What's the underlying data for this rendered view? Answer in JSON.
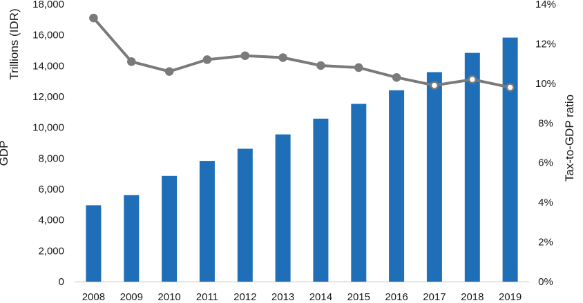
{
  "chart_data": {
    "type": "bar+line",
    "categories": [
      "2008",
      "2009",
      "2010",
      "2011",
      "2012",
      "2013",
      "2014",
      "2015",
      "2016",
      "2017",
      "2018",
      "2019"
    ],
    "series": [
      {
        "kind": "bar",
        "axis": "left",
        "color": "#1F6FB8",
        "values": [
          4950,
          5610,
          6860,
          7830,
          8620,
          9550,
          10570,
          11530,
          12410,
          13590,
          14840,
          15830
        ]
      },
      {
        "kind": "line",
        "axis": "right",
        "color": "#7A7A7A",
        "marker_fill": "#ffffff",
        "values": [
          13.3,
          11.1,
          10.6,
          11.2,
          11.4,
          11.3,
          10.9,
          10.8,
          10.3,
          9.9,
          10.2,
          9.8
        ]
      }
    ],
    "y_left": {
      "labels": [
        "Trillions (IDR)",
        "GDP"
      ],
      "ylim": [
        0,
        18000
      ],
      "ticks": [
        0,
        2000,
        4000,
        6000,
        8000,
        10000,
        12000,
        14000,
        16000,
        18000
      ],
      "tick_labels": [
        "0",
        "2,000",
        "4,000",
        "6,000",
        "8,000",
        "10,000",
        "12,000",
        "14,000",
        "16,000",
        "18,000"
      ]
    },
    "y_right": {
      "label": "Tax-to-GDP ratio",
      "ylim": [
        0,
        14
      ],
      "ticks": [
        0,
        2,
        4,
        6,
        8,
        10,
        12,
        14
      ],
      "tick_labels": [
        "0%",
        "2%",
        "4%",
        "6%",
        "8%",
        "10%",
        "12%",
        "14%"
      ]
    },
    "grid": false,
    "legend": "none"
  }
}
